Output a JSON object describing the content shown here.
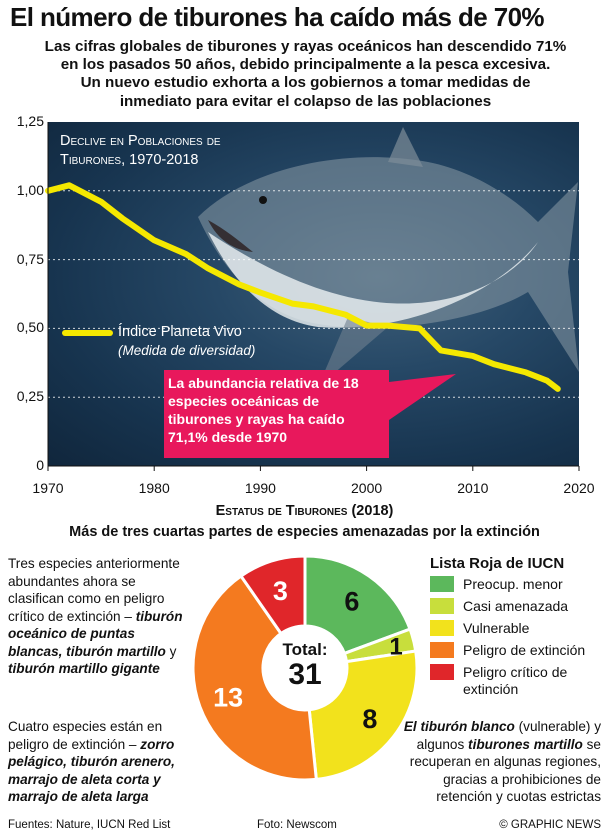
{
  "title": "El número de tiburones ha caído más de 70%",
  "subtitle_lines": [
    "Las cifras globales de tiburones y rayas oceánicos han descendido 71%",
    "en los pasados 50 años, debido principalmente a la pesca excesiva.",
    "Un nuevo estudio exhorta a los gobiernos a tomar medidas de",
    "inmediato para evitar el colapso de las poblaciones"
  ],
  "line_panel": {
    "title_line1": "Declive en Poblaciones de",
    "title_line2": "Tiburones, 1970-2018",
    "legend_label": "Índice Planeta Vivo",
    "legend_sub": "(Medida de diversidad)",
    "callout": "La abundancia relativa de 18 especies oceánicas de tiburones y rayas ha caído 71,1% desde 1970"
  },
  "section2": {
    "title": "Estatus de Tiburones (2018)",
    "subtitle": "Más de tres cuartas partes de especies amenazadas por la extinción"
  },
  "left_text_1": {
    "plain": "Tres especies anteriormente abundantes ahora se clasifican como en peligro crítico de extinción –",
    "bold": "tiburón oceánico de puntas blancas, tiburón martillo",
    "plain2": " y ",
    "bold2": "tiburón martillo gigante"
  },
  "left_text_2": {
    "plain": "Cuatro especies están en peligro de extinción –",
    "bold": "zorro pelágico, tiburón arenero, marrajo de aleta corta y marrajo de aleta larga"
  },
  "right_text": {
    "bold1": "El tiburón blanco",
    "plain1": " (vulnerable) y algunos ",
    "bold2": "tiburones martillo",
    "plain2": " se recuperan en algunas regiones, gracias a prohibiciones de retención y cuotas estrictas"
  },
  "donut": {
    "total_label": "Total:",
    "total_value": "31"
  },
  "iucn_legend": {
    "title": "Lista Roja de IUCN",
    "items": [
      {
        "label": "Preocup. menor",
        "color": "#5cb85c"
      },
      {
        "label": "Casi amenazada",
        "color": "#c8de3c"
      },
      {
        "label": "Vulnerable",
        "color": "#f2e21c"
      },
      {
        "label": "Peligro de extinción",
        "color": "#f47a1f"
      },
      {
        "label": "Peligro crítico de extinción",
        "color": "#e0262a"
      }
    ]
  },
  "footer": {
    "sources": "Fuentes: Nature, IUCN Red List",
    "photo": "Foto: Newscom",
    "credit": "© GRAPHIC NEWS"
  },
  "colors": {
    "line": "#f5e800",
    "callout": "#e8185c",
    "panel": "#1c3a55"
  },
  "chart_data": [
    {
      "type": "line",
      "title": "Declive en Poblaciones de Tiburones, 1970-2018",
      "xlabel": "",
      "ylabel": "",
      "xlim": [
        1970,
        2020
      ],
      "ylim": [
        0,
        1.25
      ],
      "xticks": [
        1970,
        1980,
        1990,
        2000,
        2010,
        2020
      ],
      "xtick_labels": [
        "1970",
        "1980",
        "1990",
        "2000",
        "2010",
        "2020"
      ],
      "yticks": [
        0,
        0.25,
        0.5,
        0.75,
        1.0,
        1.25
      ],
      "ytick_labels": [
        "0",
        "0,25",
        "0,50",
        "0,75",
        "1,00",
        "1,25"
      ],
      "series": [
        {
          "name": "Índice Planeta Vivo",
          "x": [
            1970,
            1972,
            1975,
            1977,
            1980,
            1983,
            1985,
            1988,
            1990,
            1993,
            1995,
            1998,
            2000,
            2002,
            2005,
            2007,
            2010,
            2012,
            2015,
            2017,
            2018
          ],
          "y": [
            1.0,
            1.02,
            0.96,
            0.9,
            0.82,
            0.77,
            0.72,
            0.66,
            0.63,
            0.59,
            0.58,
            0.55,
            0.51,
            0.51,
            0.5,
            0.42,
            0.4,
            0.37,
            0.34,
            0.31,
            0.28
          ]
        }
      ]
    },
    {
      "type": "pie",
      "title": "Estatus de Tiburones (2018)",
      "categories": [
        "Preocup. menor",
        "Casi amenazada",
        "Vulnerable",
        "Peligro de extinción",
        "Peligro crítico de extinción"
      ],
      "values": [
        6,
        1,
        8,
        13,
        3
      ],
      "total": 31
    }
  ]
}
